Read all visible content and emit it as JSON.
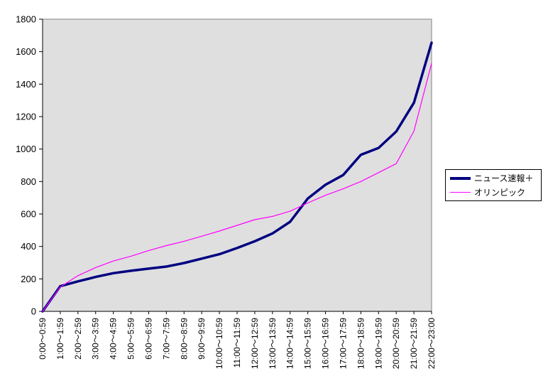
{
  "chart_data": {
    "type": "line",
    "title": "",
    "categories": [
      "0:00～0:59",
      "1:00～1:59",
      "2:00～2:59",
      "3:00～3:59",
      "4:00～4:59",
      "5:00～5:59",
      "6:00～6:59",
      "7:00～7:59",
      "8:00～8:59",
      "9:00～9:59",
      "10:00～10:59",
      "11:00～11:59",
      "12:00～12:59",
      "13:00～13:59",
      "14:00～14:59",
      "15:00～15:59",
      "16:00～16:59",
      "17:00～17:59",
      "18:00～18:59",
      "19:00～19:59",
      "20:00～20:59",
      "21:00～21:59",
      "22:00～23:00"
    ],
    "series": [
      {
        "name": "ニュース速報＋",
        "color": "#000080",
        "line_width": 3.5,
        "values": [
          0,
          155,
          185,
          212,
          235,
          250,
          263,
          276,
          298,
          325,
          352,
          390,
          432,
          480,
          552,
          695,
          780,
          840,
          965,
          1007,
          1108,
          1285,
          1655
        ]
      },
      {
        "name": "オリンピック",
        "color": "#FF00FF",
        "line_width": 1.2,
        "values": [
          0,
          150,
          220,
          270,
          310,
          340,
          375,
          405,
          432,
          463,
          495,
          530,
          565,
          585,
          617,
          668,
          715,
          755,
          800,
          855,
          910,
          1110,
          1528
        ]
      }
    ],
    "y_axis": {
      "min": 0,
      "max": 1800,
      "step": 200,
      "tick_labels": [
        "0",
        "200",
        "400",
        "600",
        "800",
        "1000",
        "1200",
        "1400",
        "1600",
        "1800"
      ]
    },
    "x_axis": {
      "label_rotation_deg": -90
    },
    "legend_position": "right",
    "grid": false,
    "plot_bg": "#DFDFDF",
    "plot_border_color": "#808080",
    "axis_color": "#000000"
  }
}
